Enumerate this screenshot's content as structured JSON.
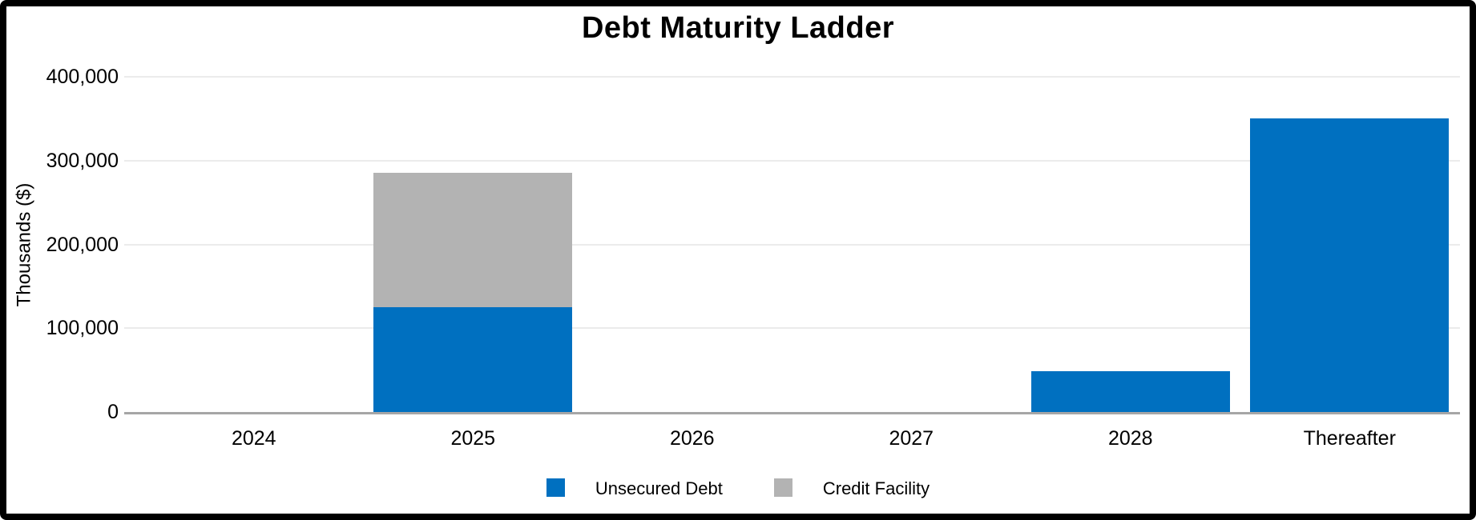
{
  "window": {
    "background_color": "#ffffff",
    "frame_border_color": "#000000"
  },
  "chart_data": {
    "type": "bar",
    "stacked": true,
    "title": "Debt Maturity Ladder",
    "xlabel": "",
    "ylabel": "Thousands ($)",
    "categories": [
      "2024",
      "2025",
      "2026",
      "2027",
      "2028",
      "Thereafter"
    ],
    "series": [
      {
        "name": "Unsecured Debt",
        "color": "#0070C0",
        "values": [
          0,
          125000,
          0,
          0,
          49000,
          350000
        ]
      },
      {
        "name": "Credit Facility",
        "color": "#B3B3B3",
        "values": [
          0,
          160000,
          0,
          0,
          0,
          0
        ]
      }
    ],
    "stack_totals": [
      0,
      285000,
      0,
      0,
      49000,
      350000
    ],
    "ylim": [
      0,
      400000
    ],
    "yticks": [
      {
        "value": 0,
        "label": "0"
      },
      {
        "value": 100000,
        "label": "100,000"
      },
      {
        "value": 200000,
        "label": "200,000"
      },
      {
        "value": 300000,
        "label": "300,000"
      },
      {
        "value": 400000,
        "label": "400,000"
      }
    ],
    "grid": "horizontal",
    "gridline_color": "#ebebeb",
    "axis_line_color": "#a6a6a6",
    "legend_position": "bottom-center"
  }
}
